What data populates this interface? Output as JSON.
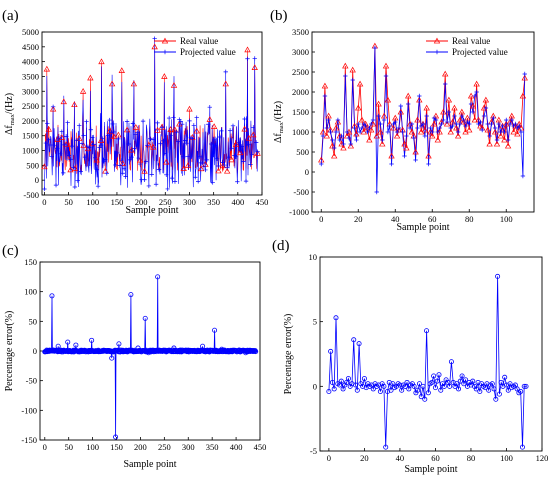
{
  "colors": {
    "real": "#ff0000",
    "projected": "#0000ff",
    "error": "#0000ff"
  },
  "chart_data": [
    {
      "id": "a",
      "panel_label": "(a)",
      "type": "line",
      "xlabel": "Sample point",
      "ylabel_main": "Δf",
      "ylabel_sub": "max",
      "ylabel_unit": "/(Hz)",
      "xlim": [
        -5,
        450
      ],
      "ylim": [
        -500,
        5000
      ],
      "xticks": [
        0,
        50,
        100,
        150,
        200,
        250,
        300,
        350,
        400,
        450
      ],
      "yticks": [
        -500,
        0,
        500,
        1000,
        1500,
        2000,
        2500,
        3000,
        3500,
        4000,
        4500,
        5000
      ],
      "legend": [
        "Real value",
        "Projected value"
      ],
      "legend_position": "top-right",
      "n_points": 442,
      "spikes": [
        [
          5,
          3750
        ],
        [
          18,
          2400
        ],
        [
          40,
          2650
        ],
        [
          62,
          2550
        ],
        [
          80,
          3000
        ],
        [
          95,
          3450
        ],
        [
          118,
          4000
        ],
        [
          140,
          3250
        ],
        [
          160,
          3700
        ],
        [
          185,
          3250
        ],
        [
          228,
          4500
        ],
        [
          248,
          3500
        ],
        [
          268,
          3200
        ],
        [
          300,
          2400
        ],
        [
          342,
          2050
        ],
        [
          375,
          3250
        ],
        [
          420,
          4400
        ],
        [
          435,
          3800
        ]
      ],
      "series_note": "Dense noisy series; values 0–5000 Hz"
    },
    {
      "id": "b",
      "panel_label": "(b)",
      "type": "line",
      "xlabel": "Sample point",
      "ylabel_main": "Δf",
      "ylabel_sub": "max",
      "ylabel_unit": "/(Hz)",
      "xlim": [
        -5,
        115
      ],
      "ylim": [
        -1000,
        3500
      ],
      "xticks": [
        0,
        20,
        40,
        60,
        80,
        100
      ],
      "yticks": [
        -1000,
        -500,
        0,
        500,
        1000,
        1500,
        2000,
        2500,
        3000,
        3500
      ],
      "legend": [
        "Real value",
        "Projected value"
      ],
      "legend_position": "top-right",
      "series": [
        {
          "name": "Real value",
          "values": [
            300,
            1000,
            2150,
            900,
            1400,
            1050,
            650,
            400,
            1100,
            1250,
            900,
            700,
            600,
            2650,
            900,
            1000,
            650,
            2550,
            1150,
            950,
            1600,
            2200,
            1300,
            1000,
            1200,
            1100,
            800,
            1050,
            1200,
            3150,
            900,
            1700,
            1000,
            700,
            1400,
            2650,
            1800,
            1200,
            400,
            1100,
            1350,
            900,
            1050,
            1500,
            1050,
            700,
            600,
            1900,
            1200,
            1000,
            900,
            500,
            1300,
            1800,
            1000,
            1200,
            1050,
            1600,
            400,
            1000,
            900,
            1200,
            1400,
            800,
            1000,
            1250,
            1500,
            2450,
            1200,
            1800,
            1000,
            1250,
            1600,
            1100,
            900,
            1300,
            1500,
            1250,
            1000,
            1350,
            1050,
            1900,
            1650,
            1300,
            2200,
            1300,
            1150,
            1100,
            1600,
            1800,
            1050,
            700,
            1250,
            1400,
            1000,
            700,
            1300,
            900,
            1150,
            800,
            1200,
            650,
            1250,
            1400,
            1000,
            1150,
            950,
            1200,
            1100,
            1900,
            2350
          ]
        },
        {
          "name": "Projected value",
          "values": [
            200,
            900,
            1900,
            1100,
            1300,
            1000,
            800,
            600,
            1000,
            1300,
            800,
            900,
            700,
            2400,
            1000,
            850,
            700,
            2300,
            1100,
            800,
            1200,
            1000,
            1100,
            1200,
            1150,
            1000,
            1100,
            1200,
            1300,
            3100,
            -500,
            1400,
            1200,
            800,
            1300,
            2400,
            1000,
            1150,
            200,
            1200,
            1250,
            1000,
            1100,
            1650,
            1000,
            400,
            900,
            1700,
            1100,
            1200,
            850,
            300,
            1100,
            1900,
            1150,
            1200,
            900,
            1400,
            200,
            1100,
            1000,
            1350,
            1300,
            1000,
            1100,
            1200,
            1300,
            2200,
            1250,
            1500,
            1100,
            1150,
            1400,
            1200,
            1000,
            1200,
            1400,
            1300,
            1150,
            1250,
            1200,
            1700,
            1500,
            1900,
            2000,
            1200,
            1250,
            1050,
            1400,
            1600,
            1200,
            900,
            1200,
            1350,
            1100,
            800,
            1200,
            1000,
            1150,
            1000,
            1300,
            800,
            1200,
            1300,
            1150,
            1200,
            1100,
            1150,
            1000,
            -100,
            2450
          ]
        }
      ]
    },
    {
      "id": "c",
      "panel_label": "(c)",
      "type": "line",
      "xlabel": "Sample point",
      "ylabel": "Percentage error(%)",
      "xlim": [
        -10,
        450
      ],
      "ylim": [
        -150,
        150
      ],
      "xticks": [
        0,
        50,
        100,
        150,
        200,
        250,
        300,
        350,
        400,
        450
      ],
      "yticks": [
        -150,
        -100,
        -50,
        0,
        50,
        100,
        150
      ],
      "n_points": 442,
      "spikes": [
        [
          15,
          93
        ],
        [
          28,
          8
        ],
        [
          48,
          15
        ],
        [
          65,
          10
        ],
        [
          98,
          18
        ],
        [
          140,
          -12
        ],
        [
          148,
          -145
        ],
        [
          155,
          12
        ],
        [
          180,
          95
        ],
        [
          195,
          5
        ],
        [
          210,
          55
        ],
        [
          217,
          -3
        ],
        [
          236,
          125
        ],
        [
          270,
          5
        ],
        [
          330,
          8
        ],
        [
          355,
          35
        ],
        [
          370,
          3
        ],
        [
          420,
          -3
        ]
      ]
    },
    {
      "id": "d",
      "panel_label": "(d)",
      "type": "line",
      "xlabel": "Sample point",
      "ylabel": "Percentage error(%)",
      "xlim": [
        -5,
        120
      ],
      "ylim": [
        -5,
        10
      ],
      "xticks": [
        0,
        20,
        40,
        60,
        80,
        100,
        120
      ],
      "yticks": [
        -5,
        0,
        5,
        10
      ],
      "series": [
        {
          "name": "",
          "values": [
            -0.4,
            2.7,
            0.3,
            -0.2,
            5.3,
            0.2,
            0.1,
            0.4,
            -0.2,
            0.1,
            0.3,
            0.6,
            0.0,
            0.2,
            3.6,
            0.1,
            -0.3,
            3.3,
            0.2,
            0.0,
            0.6,
            -0.1,
            0.2,
            0.0,
            0.1,
            -0.2,
            0.2,
            0.0,
            0.1,
            -0.4,
            0.2,
            0.0,
            -4.7,
            -0.4,
            0.3,
            -0.3,
            0.2,
            -0.1,
            0.0,
            0.2,
            0.1,
            -0.3,
            0.1,
            0.0,
            0.3,
            -0.2,
            0.1,
            0.2,
            0.0,
            -0.5,
            -0.3,
            0.2,
            -0.8,
            0.0,
            -1.0,
            4.3,
            -0.5,
            0.2,
            0.3,
            0.8,
            -0.1,
            0.4,
            0.9,
            -0.3,
            0.2,
            0.0,
            0.5,
            0.3,
            0.0,
            1.9,
            0.3,
            0.0,
            0.2,
            -0.2,
            0.4,
            0.8,
            0.2,
            0.5,
            0.0,
            0.3,
            0.1,
            0.4,
            0.0,
            -0.2,
            0.3,
            -0.4,
            0.2,
            0.0,
            -0.1,
            0.2,
            -0.3,
            0.1,
            0.2,
            -0.2,
            -1.0,
            8.5,
            -0.6,
            0.3,
            0.0,
            0.7,
            0.1,
            -0.3,
            0.2,
            -0.1,
            0.0,
            0.1,
            -0.2,
            -0.5,
            -0.4,
            -4.7,
            0.0,
            0.0
          ]
        }
      ]
    }
  ]
}
